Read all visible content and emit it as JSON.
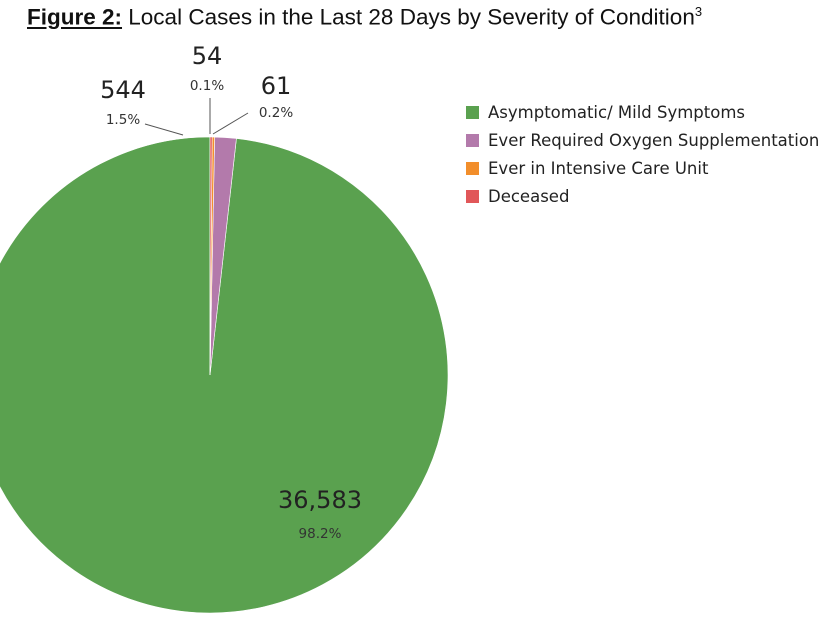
{
  "title": {
    "figure": "Figure 2:",
    "text": "Local Cases in the Last 28 Days by Severity of Condition",
    "footnote": "3"
  },
  "chart_data": {
    "type": "pie",
    "categories": [
      "Asymptomatic/ Mild Symptoms",
      "Ever Required Oxygen Supplementation",
      "Ever in Intensive Care Unit",
      "Deceased"
    ],
    "values": [
      36583,
      544,
      61,
      54
    ],
    "value_labels": [
      "36,583",
      "544",
      "61",
      "54"
    ],
    "percent_labels": [
      "98.2%",
      "1.5%",
      "0.2%",
      "0.1%"
    ],
    "colors": [
      "#5aa14f",
      "#b37aab",
      "#f28e2b",
      "#e15759"
    ],
    "start_angle_deg": 0,
    "direction": "counterclockwise",
    "legend_position": "right"
  }
}
